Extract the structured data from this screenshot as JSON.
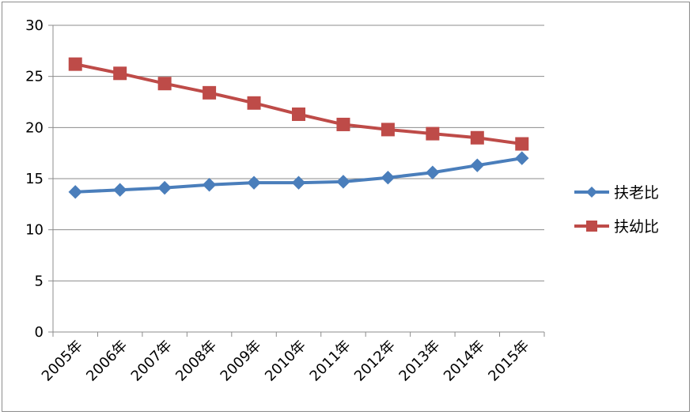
{
  "chart_data": {
    "type": "line",
    "title": "",
    "xlabel": "",
    "ylabel": "",
    "categories": [
      "2005年",
      "2006年",
      "2007年",
      "2008年",
      "2009年",
      "2010年",
      "2011年",
      "2012年",
      "2013年",
      "2014年",
      "2015年"
    ],
    "ylim": [
      0,
      30
    ],
    "yticks": [
      0,
      5,
      10,
      15,
      20,
      25,
      30
    ],
    "grid": true,
    "legend_position": "right",
    "series": [
      {
        "name": "扶老比",
        "color": "#4a7ebb",
        "marker": "diamond",
        "values": [
          13.7,
          13.9,
          14.1,
          14.4,
          14.6,
          14.6,
          14.7,
          15.1,
          15.6,
          16.3,
          17.0
        ]
      },
      {
        "name": "扶幼比",
        "color": "#be4b48",
        "marker": "square",
        "values": [
          26.2,
          25.3,
          24.3,
          23.4,
          22.4,
          21.3,
          20.3,
          19.8,
          19.4,
          19.0,
          18.4
        ]
      }
    ]
  }
}
